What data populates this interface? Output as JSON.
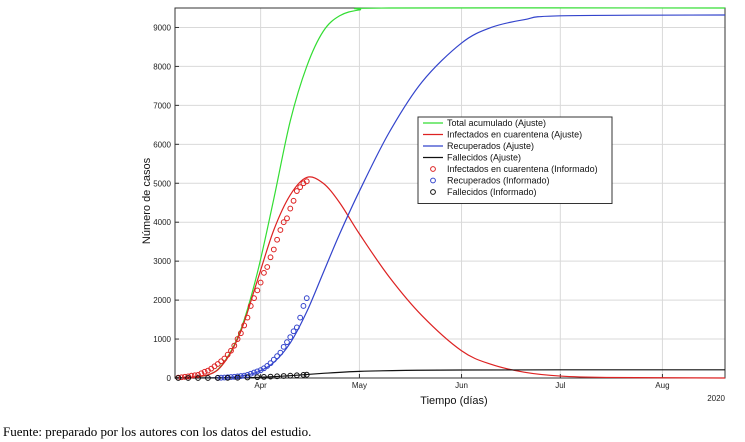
{
  "chart_data": {
    "type": "line",
    "xlabel": "Tiempo (días)",
    "ylabel": "Número de casos",
    "year_label": "2020",
    "x_ticks": [
      {
        "label": "Apr",
        "date": "2020-04-01"
      },
      {
        "label": "May",
        "date": "2020-05-01"
      },
      {
        "label": "Jun",
        "date": "2020-06-01"
      },
      {
        "label": "Jul",
        "date": "2020-07-01"
      },
      {
        "label": "Aug",
        "date": "2020-08-01"
      }
    ],
    "xlim": [
      "2020-03-06",
      "2020-08-20"
    ],
    "ylim": [
      0,
      9500
    ],
    "y_ticks": [
      0,
      1000,
      2000,
      3000,
      4000,
      5000,
      6000,
      7000,
      8000,
      9000
    ],
    "grid": true,
    "legend_position": "center-right",
    "series": [
      {
        "name": "Total acumulado (Ajuste)",
        "kind": "line",
        "color": "#33dd33",
        "points": [
          [
            "2020-03-06",
            0
          ],
          [
            "2020-03-16",
            80
          ],
          [
            "2020-03-21",
            420
          ],
          [
            "2020-03-26",
            1250
          ],
          [
            "2020-03-31",
            2700
          ],
          [
            "2020-04-05",
            4600
          ],
          [
            "2020-04-10",
            6600
          ],
          [
            "2020-04-15",
            8000
          ],
          [
            "2020-04-20",
            8900
          ],
          [
            "2020-04-25",
            9300
          ],
          [
            "2020-05-01",
            9450
          ],
          [
            "2020-05-10",
            9500
          ],
          [
            "2020-08-20",
            9500
          ]
        ]
      },
      {
        "name": "Infectados en cuarentena (Ajuste)",
        "kind": "line",
        "color": "#dd2222",
        "points": [
          [
            "2020-03-06",
            0
          ],
          [
            "2020-03-16",
            80
          ],
          [
            "2020-03-21",
            400
          ],
          [
            "2020-03-26",
            1200
          ],
          [
            "2020-03-31",
            2500
          ],
          [
            "2020-04-05",
            3800
          ],
          [
            "2020-04-10",
            4700
          ],
          [
            "2020-04-15",
            5150
          ],
          [
            "2020-04-20",
            5000
          ],
          [
            "2020-04-25",
            4500
          ],
          [
            "2020-05-01",
            3700
          ],
          [
            "2020-05-10",
            2600
          ],
          [
            "2020-05-20",
            1600
          ],
          [
            "2020-06-01",
            700
          ],
          [
            "2020-06-10",
            350
          ],
          [
            "2020-06-20",
            150
          ],
          [
            "2020-07-01",
            50
          ],
          [
            "2020-07-15",
            15
          ],
          [
            "2020-08-20",
            0
          ]
        ]
      },
      {
        "name": "Recuperados (Ajuste)",
        "kind": "line",
        "color": "#3344cc",
        "points": [
          [
            "2020-03-06",
            0
          ],
          [
            "2020-03-21",
            10
          ],
          [
            "2020-03-26",
            50
          ],
          [
            "2020-03-31",
            150
          ],
          [
            "2020-04-05",
            400
          ],
          [
            "2020-04-10",
            900
          ],
          [
            "2020-04-15",
            1700
          ],
          [
            "2020-04-20",
            2700
          ],
          [
            "2020-04-25",
            3700
          ],
          [
            "2020-05-01",
            4800
          ],
          [
            "2020-05-10",
            6300
          ],
          [
            "2020-05-20",
            7600
          ],
          [
            "2020-06-01",
            8600
          ],
          [
            "2020-06-10",
            9000
          ],
          [
            "2020-06-20",
            9200
          ],
          [
            "2020-07-01",
            9300
          ],
          [
            "2020-08-20",
            9320
          ]
        ]
      },
      {
        "name": "Fallecidos (Ajuste)",
        "kind": "line",
        "color": "#111111",
        "points": [
          [
            "2020-03-06",
            0
          ],
          [
            "2020-03-26",
            5
          ],
          [
            "2020-04-01",
            20
          ],
          [
            "2020-04-10",
            60
          ],
          [
            "2020-04-20",
            120
          ],
          [
            "2020-05-01",
            170
          ],
          [
            "2020-05-15",
            195
          ],
          [
            "2020-06-01",
            205
          ],
          [
            "2020-07-01",
            210
          ],
          [
            "2020-08-20",
            210
          ]
        ]
      },
      {
        "name": "Infectados en cuarentena (Informado)",
        "kind": "scatter",
        "color": "#dd2222",
        "points": [
          [
            "2020-03-07",
            10
          ],
          [
            "2020-03-08",
            20
          ],
          [
            "2020-03-09",
            30
          ],
          [
            "2020-03-10",
            40
          ],
          [
            "2020-03-11",
            60
          ],
          [
            "2020-03-12",
            70
          ],
          [
            "2020-03-13",
            80
          ],
          [
            "2020-03-14",
            120
          ],
          [
            "2020-03-15",
            160
          ],
          [
            "2020-03-16",
            190
          ],
          [
            "2020-03-17",
            240
          ],
          [
            "2020-03-18",
            300
          ],
          [
            "2020-03-19",
            360
          ],
          [
            "2020-03-20",
            430
          ],
          [
            "2020-03-21",
            500
          ],
          [
            "2020-03-22",
            600
          ],
          [
            "2020-03-23",
            700
          ],
          [
            "2020-03-24",
            830
          ],
          [
            "2020-03-25",
            1000
          ],
          [
            "2020-03-26",
            1150
          ],
          [
            "2020-03-27",
            1350
          ],
          [
            "2020-03-28",
            1550
          ],
          [
            "2020-03-29",
            1850
          ],
          [
            "2020-03-30",
            2050
          ],
          [
            "2020-03-31",
            2250
          ],
          [
            "2020-04-01",
            2450
          ],
          [
            "2020-04-02",
            2700
          ],
          [
            "2020-04-03",
            2850
          ],
          [
            "2020-04-04",
            3100
          ],
          [
            "2020-04-05",
            3300
          ],
          [
            "2020-04-06",
            3550
          ],
          [
            "2020-04-07",
            3800
          ],
          [
            "2020-04-08",
            4000
          ],
          [
            "2020-04-09",
            4100
          ],
          [
            "2020-04-10",
            4350
          ],
          [
            "2020-04-11",
            4550
          ],
          [
            "2020-04-12",
            4800
          ],
          [
            "2020-04-13",
            4900
          ],
          [
            "2020-04-14",
            5000
          ],
          [
            "2020-04-15",
            5050
          ]
        ]
      },
      {
        "name": "Recuperados (Informado)",
        "kind": "scatter",
        "color": "#3344cc",
        "points": [
          [
            "2020-03-19",
            5
          ],
          [
            "2020-03-20",
            8
          ],
          [
            "2020-03-21",
            12
          ],
          [
            "2020-03-22",
            18
          ],
          [
            "2020-03-23",
            25
          ],
          [
            "2020-03-24",
            30
          ],
          [
            "2020-03-25",
            40
          ],
          [
            "2020-03-26",
            50
          ],
          [
            "2020-03-27",
            60
          ],
          [
            "2020-03-28",
            80
          ],
          [
            "2020-03-29",
            110
          ],
          [
            "2020-03-30",
            140
          ],
          [
            "2020-03-31",
            170
          ],
          [
            "2020-04-01",
            200
          ],
          [
            "2020-04-02",
            250
          ],
          [
            "2020-04-03",
            310
          ],
          [
            "2020-04-04",
            380
          ],
          [
            "2020-04-05",
            470
          ],
          [
            "2020-04-06",
            560
          ],
          [
            "2020-04-07",
            650
          ],
          [
            "2020-04-08",
            800
          ],
          [
            "2020-04-09",
            920
          ],
          [
            "2020-04-10",
            1050
          ],
          [
            "2020-04-11",
            1200
          ],
          [
            "2020-04-12",
            1300
          ],
          [
            "2020-04-13",
            1550
          ],
          [
            "2020-04-14",
            1850
          ],
          [
            "2020-04-15",
            2050
          ]
        ]
      },
      {
        "name": "Fallecidos  (Informado)",
        "kind": "scatter",
        "color": "#111111",
        "points": [
          [
            "2020-03-07",
            0
          ],
          [
            "2020-03-10",
            0
          ],
          [
            "2020-03-13",
            0
          ],
          [
            "2020-03-16",
            0
          ],
          [
            "2020-03-19",
            2
          ],
          [
            "2020-03-22",
            4
          ],
          [
            "2020-03-25",
            8
          ],
          [
            "2020-03-28",
            14
          ],
          [
            "2020-03-31",
            22
          ],
          [
            "2020-04-02",
            28
          ],
          [
            "2020-04-04",
            36
          ],
          [
            "2020-04-06",
            44
          ],
          [
            "2020-04-08",
            52
          ],
          [
            "2020-04-10",
            60
          ],
          [
            "2020-04-12",
            70
          ],
          [
            "2020-04-14",
            80
          ],
          [
            "2020-04-15",
            85
          ]
        ]
      }
    ]
  },
  "caption": "Fuente: preparado por los autores con los datos del estudio."
}
